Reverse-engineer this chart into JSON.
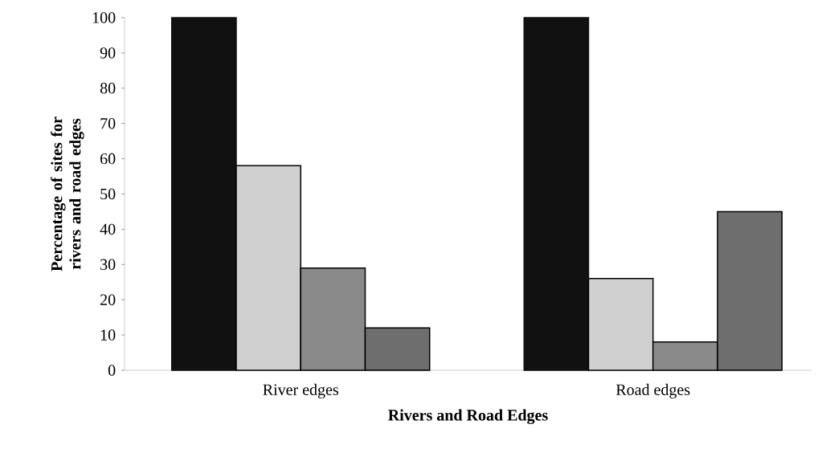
{
  "chart_data": {
    "type": "bar",
    "xlabel": "Rivers and Road Edges",
    "ylabel": "Percentage of sites for rivers and road edges",
    "categories": [
      "River edges",
      "Road edges"
    ],
    "series": [
      {
        "color": "#111111",
        "values": [
          100,
          100
        ]
      },
      {
        "color": "#d0d0d0",
        "values": [
          58,
          26
        ]
      },
      {
        "color": "#8a8a8a",
        "values": [
          29,
          8
        ]
      },
      {
        "color": "#6e6e6e",
        "values": [
          12,
          45
        ]
      }
    ],
    "ylim": [
      0,
      100
    ],
    "yticks": [
      0,
      10,
      20,
      30,
      40,
      50,
      60,
      70,
      80,
      90,
      100
    ]
  }
}
